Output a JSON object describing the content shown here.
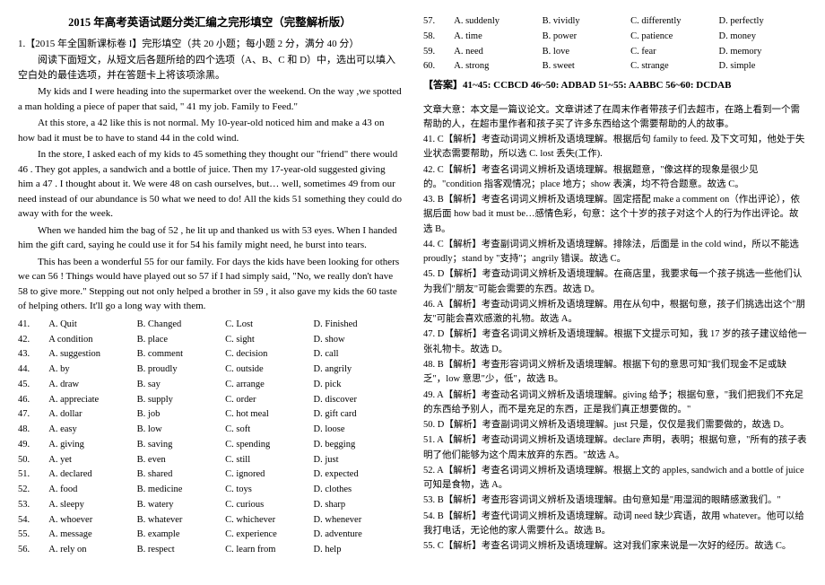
{
  "title": "2015 年高考英语试题分类汇编之完形填空（完整解析版）",
  "header": "1.【2015 年全国新课标卷 I】完形填空（共 20 小题；每小题 2 分，满分 40 分）",
  "instruction": "阅读下面短文，从短文后各题所给的四个选项（A、B、C 和 D）中，选出可以填入空白处的最佳选项，并在答题卡上将该项涂黑。",
  "passage": [
    "My kids and I were heading into the supermarket over the weekend. On the way ,we spotted a man holding a piece of paper that said, \"   41   my job. Family to Feed.\"",
    "At this store, a   42   like this is not normal. My 10-year-old noticed him and make a   43   on how bad it must be to have to stand   44   in the cold wind.",
    "In the store, I asked each of my kids to   45   something they thought our \"friend\" there would   46  . They got apples, a sandwich and a bottle of juice. Then my 17-year-old suggested giving him a   47  . I thought about it. We were   48   on cash ourselves, but… well, sometimes   49   from our need instead of our abundance is   50   what we need to do! All the kids   51   something they could do away with for the week.",
    "When we handed him the bag of   52  , he lit up and thanked us with   53   eyes. When I handed him the gift card, saying he could use it for   54   his family might need, he burst into tears.",
    "This has been a wonderful   55   for our family. For days the kids have been looking for others we can   56  ! Things would have played out so   57   if I had simply said, \"No, we really don't have   58   to give more.\" Stepping out not only helped a brother in   59  , it also gave my kids the   60   taste of helping others. It'll go a long way with them."
  ],
  "options": [
    {
      "n": "41",
      "a": "A. Quit",
      "b": "B. Changed",
      "c": "C. Lost",
      "d": "D. Finished"
    },
    {
      "n": "42",
      "a": "A condition",
      "b": "B. place",
      "c": "C. sight",
      "d": "D. show"
    },
    {
      "n": "43",
      "a": "A. suggestion",
      "b": "B. comment",
      "c": "C. decision",
      "d": "D. call"
    },
    {
      "n": "44",
      "a": "A. by",
      "b": "B. proudly",
      "c": "C. outside",
      "d": "D. angrily"
    },
    {
      "n": "45",
      "a": "A. draw",
      "b": "B. say",
      "c": "C. arrange",
      "d": "D. pick"
    },
    {
      "n": "46",
      "a": "A. appreciate",
      "b": "B. supply",
      "c": "C. order",
      "d": "D. discover"
    },
    {
      "n": "47",
      "a": "A. dollar",
      "b": "B. job",
      "c": "C. hot meal",
      "d": "D. gift card"
    },
    {
      "n": "48",
      "a": "A. easy",
      "b": "B. low",
      "c": "C. soft",
      "d": "D. loose"
    },
    {
      "n": "49",
      "a": "A. giving",
      "b": "B. saving",
      "c": "C. spending",
      "d": "D. begging"
    },
    {
      "n": "50",
      "a": "A. yet",
      "b": "B. even",
      "c": "C. still",
      "d": "D. just"
    },
    {
      "n": "51",
      "a": "A. declared",
      "b": "B. shared",
      "c": "C. ignored",
      "d": "D. expected"
    },
    {
      "n": "52",
      "a": "A. food",
      "b": "B. medicine",
      "c": "C. toys",
      "d": "D. clothes"
    },
    {
      "n": "53",
      "a": "A. sleepy",
      "b": "B. watery",
      "c": "C. curious",
      "d": "D. sharp"
    },
    {
      "n": "54",
      "a": "A. whoever",
      "b": "B. whatever",
      "c": "C. whichever",
      "d": "D. whenever"
    },
    {
      "n": "55",
      "a": "A. message",
      "b": "B. example",
      "c": "C. experience",
      "d": "D. adventure"
    },
    {
      "n": "56",
      "a": "A. rely on",
      "b": "B. respect",
      "c": "C. learn from",
      "d": "D. help"
    },
    {
      "n": "57",
      "a": "A. suddenly",
      "b": "B. vividly",
      "c": "C. differently",
      "d": "D. perfectly"
    },
    {
      "n": "58",
      "a": "A. time",
      "b": "B. power",
      "c": "C. patience",
      "d": "D. money"
    },
    {
      "n": "59",
      "a": "A. need",
      "b": "B. love",
      "c": "C. fear",
      "d": "D. memory"
    },
    {
      "n": "60",
      "a": "A. strong",
      "b": "B. sweet",
      "c": "C. strange",
      "d": "D. simple"
    }
  ],
  "answers": "【答案】41~45: CCBCD    46~50: ADBAD    51~55: AABBC    56~60: DCDAB",
  "summary": "文章大意：本文是一篇议论文。文章讲述了在周末作者带孩子们去超市，在路上看到一个需帮助的人，在超市里作者和孩子买了许多东西给这个需要帮助的人的故事。",
  "analysis": [
    "41. C【解析】考查动词词义辨析及语境理解。根据后句 family to feed. 及下文可知，他处于失业状态需要帮助，所以选 C. lost 丢失(工作).",
    "42. C【解析】考查名词词义辨析及语境理解。根据题意，\"像这样的现象是很少见的。\"condition 指客观情况；place 地方；show 表演，均不符合题意。故选 C。",
    "43. B【解析】考查名词词义辨析及语境理解。固定搭配 make a comment on（作出评论），依据后面 how bad it must be…感情色彩，句意：这个十岁的孩子对这个人的行为作出评论。故选 B。",
    "44. C【解析】考查副词词义辨析及语境理解。排除法，后面是 in the cold wind，所以不能选 proudly；stand by \"支持\"；angrily 错误。故选 C。",
    "45. D【解析】考查动词词义辨析及语境理解。在商店里，我要求每一个孩子挑选一些他们认为我们\"朋友\"可能会需要的东西。故选 D。",
    "46. A【解析】考查动词词义辨析及语境理解。用在从句中，根据句意，孩子们挑选出这个\"朋友\"可能会喜欢感激的礼物。故选 A。",
    "47. D【解析】考查名词词义辨析及语境理解。根据下文提示可知，我 17 岁的孩子建议给他一张礼物卡。故选 D。",
    "48. B【解析】考查形容词词义辨析及语境理解。根据下句的意思可知\"我们现金不足或缺乏\"，low 意思\"少，低\"，故选 B。",
    "49. A【解析】考查动名词词义辨析及语境理解。giving 给予；根据句意，\"我们把我们不充足的东西给予别人，而不是充足的东西，正是我们真正想要做的。\"",
    "50. D【解析】考查副词词义辨析及语境理解。just 只是，仅仅是我们需要做的，故选 D。",
    "51. A【解析】考查动词词义辨析及语境理解。declare 声明，表明；根据句意，\"所有的孩子表明了他们能够为这个周末放弃的东西。\"故选 A。",
    "52. A【解析】考查名词词义辨析及语境理解。根据上文的 apples, sandwich and a bottle of juice 可知是食物，选 A。",
    "53. B【解析】考查形容词词义辨析及语境理解。由句意知是\"用湿润的眼睛感激我们。\"",
    "54. B【解析】考查代词词义辨析及语境理解。动词 need 缺少宾语，故用 whatever。他可以给我打电话，无论他的家人需要什么。故选 B。",
    "55. C【解析】考查名词词义辨析及语境理解。这对我们家来说是一次好的经历。故选 C。",
    "56. D【解析】考查动词词义辨析及语境理解。多少天来，孩子们一直在寻找我们能够帮助的其他人。故选 D。",
    "57. C【解析】考查副词词义辨析及语境理解。如果我当时没有帮助他的话，结局会是完全与众不同的。故选 C。",
    "58. D【解析】考查名词词义辨析及语境理解。我真的不需要给更多的钱。故选 D。",
    "59. A【解析】考查名词词义辨析及语境理解。in need 在危难中。走出不仅仅帮助在危难中的兄弟。故选 A。",
    "60. B【解析】考查形容词词义辨析及语境理解。选 B. sweet 甜的。也给予我孩子们帮助他人的甜头。故选 B。"
  ]
}
